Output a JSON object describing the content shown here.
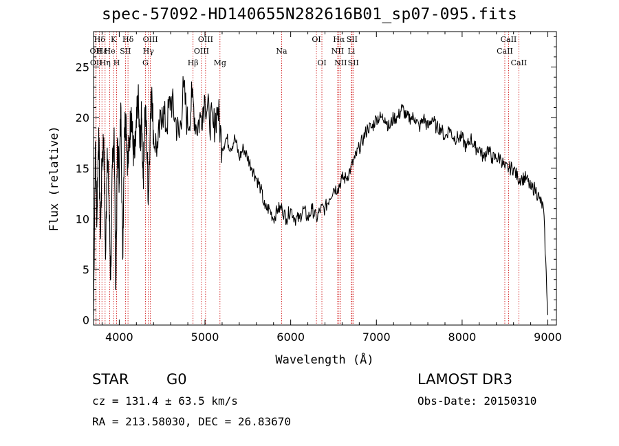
{
  "header": {
    "title": "spec-57092-HD140655N282616B01_sp07-095.fits"
  },
  "info": {
    "class": "STAR",
    "subclass": "G0",
    "survey": "LAMOST DR3",
    "cz": "cz = 131.4 ± 63.5 km/s",
    "obs_date": "Obs-Date: 20150310",
    "radec": "RA = 213.58030, DEC =  26.83670"
  },
  "chart_data": {
    "type": "line",
    "xlabel": "Wavelength (Å)",
    "ylabel": "Flux (relative)",
    "xlim": [
      3700,
      9100
    ],
    "ylim": [
      -0.5,
      28.5
    ],
    "xticks": [
      4000,
      5000,
      6000,
      7000,
      8000,
      9000
    ],
    "yticks": [
      0,
      5,
      10,
      15,
      20,
      25
    ],
    "line_color": "#000000",
    "marker_color": "#cc0000",
    "spectral_lines": [
      {
        "label": "Hδ",
        "wavelength": 3770,
        "row": 1
      },
      {
        "label": "OII",
        "wavelength": 3727,
        "row": 2
      },
      {
        "label": "OII",
        "wavelength": 3730,
        "row": 3
      },
      {
        "label": "Hε",
        "wavelength": 3798,
        "row": 2
      },
      {
        "label": "Hη",
        "wavelength": 3835,
        "row": 3
      },
      {
        "label": "K",
        "wavelength": 3934,
        "row": 1
      },
      {
        "label": "He",
        "wavelength": 3889,
        "row": 2
      },
      {
        "label": "SII",
        "wavelength": 4072,
        "row": 2
      },
      {
        "label": "H",
        "wavelength": 3969,
        "row": 3
      },
      {
        "label": "Hδ",
        "wavelength": 4102,
        "row": 1
      },
      {
        "label": "OIII",
        "wavelength": 4363,
        "row": 1
      },
      {
        "label": "Hγ",
        "wavelength": 4340,
        "row": 2
      },
      {
        "label": "G",
        "wavelength": 4305,
        "row": 3
      },
      {
        "label": "Hβ",
        "wavelength": 4861,
        "row": 3
      },
      {
        "label": "OIII",
        "wavelength": 5007,
        "row": 1
      },
      {
        "label": "OIII",
        "wavelength": 4959,
        "row": 2
      },
      {
        "label": "Mg",
        "wavelength": 5175,
        "row": 3
      },
      {
        "label": "Na",
        "wavelength": 5894,
        "row": 2
      },
      {
        "label": "OI",
        "wavelength": 6300,
        "row": 1
      },
      {
        "label": "OI",
        "wavelength": 6364,
        "row": 3
      },
      {
        "label": "Hα",
        "wavelength": 6563,
        "row": 1
      },
      {
        "label": "NII",
        "wavelength": 6548,
        "row": 2
      },
      {
        "label": "NII",
        "wavelength": 6583,
        "row": 3
      },
      {
        "label": "SII",
        "wavelength": 6716,
        "row": 1
      },
      {
        "label": "Li",
        "wavelength": 6708,
        "row": 2
      },
      {
        "label": "SII",
        "wavelength": 6731,
        "row": 3
      },
      {
        "label": "CaII",
        "wavelength": 8542,
        "row": 1
      },
      {
        "label": "CaII",
        "wavelength": 8498,
        "row": 2
      },
      {
        "label": "CaII",
        "wavelength": 8662,
        "row": 3
      }
    ],
    "series": [
      {
        "x": [
          3700,
          3720,
          3740,
          3760,
          3780,
          3800,
          3820,
          3840,
          3860,
          3880,
          3900,
          3920,
          3940,
          3960,
          3980,
          4000,
          4020,
          4040,
          4060,
          4080,
          4100,
          4120,
          4140,
          4160,
          4180,
          4200,
          4220,
          4240,
          4260,
          4280,
          4300,
          4320,
          4340,
          4360,
          4380,
          4400,
          4450,
          4500,
          4550,
          4600,
          4650,
          4700,
          4750,
          4800,
          4850,
          4900,
          4950,
          5000,
          5050,
          5100,
          5150,
          5200,
          5250,
          5300,
          5350,
          5400,
          5450,
          5500,
          5550,
          5600,
          5650,
          5700,
          5750,
          5800,
          5850,
          5900,
          5950,
          6000,
          6050,
          6100,
          6150,
          6200,
          6250,
          6300,
          6350,
          6400,
          6450,
          6500,
          6550,
          6600,
          6650,
          6700,
          6750,
          6800,
          6850,
          6900,
          6950,
          7000,
          7050,
          7100,
          7150,
          7200,
          7250,
          7300,
          7350,
          7400,
          7450,
          7500,
          7550,
          7600,
          7650,
          7700,
          7750,
          7800,
          7850,
          7900,
          7950,
          8000,
          8050,
          8100,
          8150,
          8200,
          8250,
          8300,
          8350,
          8400,
          8450,
          8500,
          8550,
          8600,
          8650,
          8700,
          8750,
          8800,
          8850,
          8900,
          8950,
          9000
        ],
        "y": [
          0.5,
          17,
          10,
          19,
          8,
          16,
          18,
          6,
          17,
          12,
          4,
          15,
          19,
          3,
          18,
          14,
          21,
          6,
          19,
          20,
          15,
          18,
          21,
          17,
          16,
          19,
          22,
          17,
          20,
          14,
          21,
          18,
          12,
          19,
          23,
          18,
          17,
          21,
          19,
          22,
          20,
          18,
          23,
          19,
          22,
          19,
          20,
          22,
          20,
          19,
          21,
          17,
          18,
          17,
          18,
          16,
          17,
          16,
          15,
          14,
          13,
          11,
          11,
          10,
          11,
          11,
          10,
          11,
          10,
          10,
          11,
          10,
          11,
          10,
          11,
          11,
          12,
          13,
          13,
          14,
          14,
          15,
          16,
          17,
          18,
          19,
          19,
          20,
          20,
          20,
          19,
          20,
          20,
          21,
          20,
          20,
          20,
          19,
          20,
          19,
          20,
          19,
          19,
          18,
          19,
          18,
          18,
          18,
          17,
          18,
          17,
          17,
          16,
          17,
          16,
          16,
          16,
          15,
          15,
          15,
          14,
          14,
          14,
          13,
          13,
          12,
          11,
          0.5
        ]
      }
    ]
  }
}
